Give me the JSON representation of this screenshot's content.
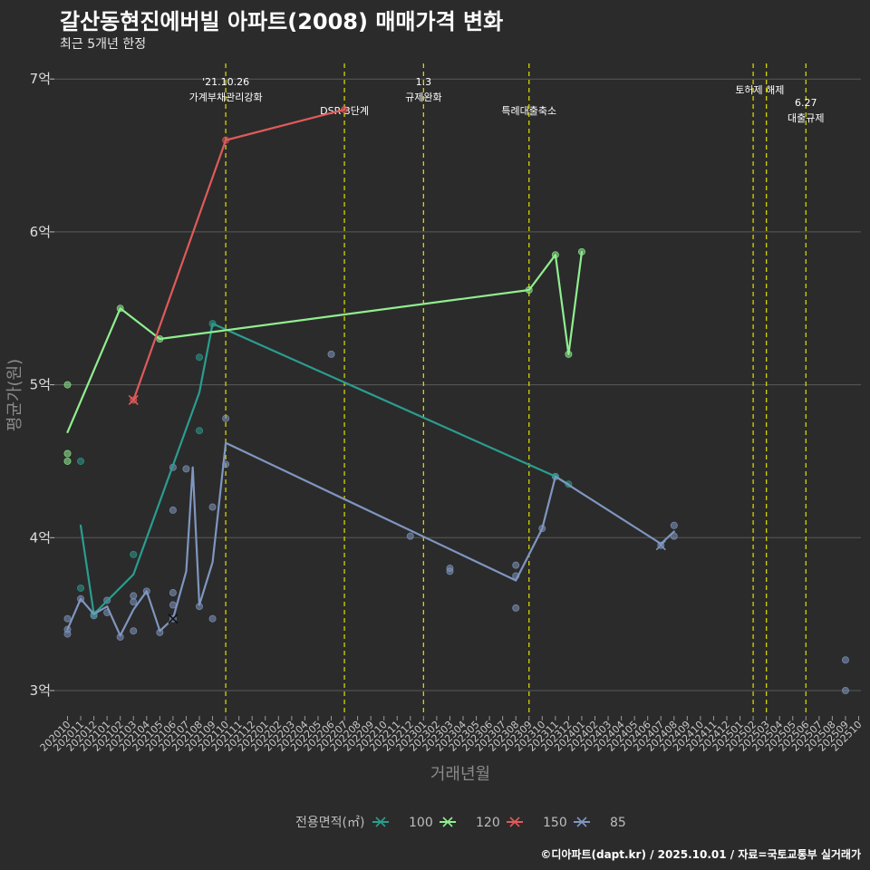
{
  "header": {
    "title": "갈산동현진에버빌 아파트(2008) 매매가격 변화",
    "subtitle": "최근 5개년 한정"
  },
  "caption": "©디아파트(dapt.kr) / 2025.10.01 / 자료=국토교통부 실거래가",
  "colors": {
    "background": "#2b2b2b",
    "grid": "#5a5a5a",
    "event_line": "#d4d400",
    "s100": "#2a9d8f",
    "s120": "#90ee90",
    "s150": "#e05a5a",
    "s85": "#7f96c0"
  },
  "chart_data": {
    "type": "line",
    "title": "갈산동현진에버빌 아파트(2008) 매매가격 변화",
    "subtitle": "최근 5개년 한정",
    "xlabel": "거래년월",
    "ylabel": "평균가(원)",
    "x_ticks": [
      "202010",
      "202011",
      "202012",
      "202101",
      "202102",
      "202103",
      "202104",
      "202105",
      "202106",
      "202107",
      "202108",
      "202109",
      "202110",
      "202111",
      "202112",
      "202201",
      "202202",
      "202203",
      "202204",
      "202205",
      "202206",
      "202207",
      "202208",
      "202209",
      "202210",
      "202211",
      "202212",
      "202301",
      "202302",
      "202303",
      "202304",
      "202305",
      "202306",
      "202307",
      "202308",
      "202309",
      "202310",
      "202311",
      "202312",
      "202401",
      "202402",
      "202403",
      "202404",
      "202405",
      "202406",
      "202407",
      "202408",
      "202409",
      "202410",
      "202411",
      "202412",
      "202501",
      "202502",
      "202503",
      "202504",
      "202505",
      "202506",
      "202507",
      "202508",
      "202509",
      "202510"
    ],
    "y_ticks": [
      {
        "value": 3,
        "label": "3억"
      },
      {
        "value": 4,
        "label": "4억"
      },
      {
        "value": 5,
        "label": "5억"
      },
      {
        "value": 6,
        "label": "6억"
      },
      {
        "value": 7,
        "label": "7억"
      }
    ],
    "ylim": [
      2.85,
      7.1
    ],
    "legend": {
      "title": "전용면적(㎡)",
      "position": "bottom"
    },
    "events": [
      {
        "month": 12,
        "lines": [
          "'21.10.26",
          "가계부채관리강화"
        ],
        "level": 0
      },
      {
        "month": 21,
        "lines": [
          "DSR 3단계"
        ],
        "level": 2
      },
      {
        "month": 27,
        "lines": [
          "1.3",
          "규제완화"
        ],
        "level": 0
      },
      {
        "month": 35,
        "lines": [
          "특례대출축소"
        ],
        "level": 2
      },
      {
        "month": 52,
        "lines": [
          "토허제 해제"
        ],
        "level": 1,
        "offset": 0.5
      },
      {
        "month": 53,
        "lines": [],
        "level": 1
      },
      {
        "month": 56,
        "lines": [
          "6.27",
          "대출규제"
        ],
        "level": 3
      }
    ],
    "series": [
      {
        "name": "100",
        "color": "#2a9d8f",
        "marker": "x",
        "line": [
          [
            1,
            4.08
          ],
          [
            2,
            3.5
          ],
          [
            5,
            3.76
          ],
          [
            10,
            4.95
          ],
          [
            11,
            5.4
          ],
          [
            37,
            4.4
          ],
          [
            38,
            4.35
          ]
        ],
        "points": [
          [
            1,
            4.5
          ],
          [
            1,
            3.67
          ],
          [
            2,
            3.5
          ],
          [
            5,
            3.89
          ],
          [
            10,
            5.18
          ],
          [
            10,
            4.7
          ],
          [
            11,
            5.4
          ],
          [
            37,
            4.4
          ],
          [
            38,
            4.35
          ]
        ]
      },
      {
        "name": "120",
        "color": "#90ee90",
        "marker": "x",
        "line": [
          [
            0,
            4.69
          ],
          [
            4,
            5.5
          ],
          [
            7,
            5.3
          ],
          [
            35,
            5.62
          ],
          [
            37,
            5.85
          ],
          [
            38,
            5.2
          ],
          [
            39,
            5.87
          ]
        ],
        "points": [
          [
            0,
            5.0
          ],
          [
            0,
            4.55
          ],
          [
            0,
            4.5
          ],
          [
            4,
            5.5
          ],
          [
            7,
            5.3
          ],
          [
            35,
            5.62
          ],
          [
            37,
            5.85
          ],
          [
            38,
            5.2
          ],
          [
            39,
            5.87
          ]
        ]
      },
      {
        "name": "150",
        "color": "#e05a5a",
        "marker": "x",
        "line": [
          [
            5,
            4.9
          ],
          [
            12,
            6.6
          ],
          [
            21,
            6.8
          ]
        ],
        "points": [
          [
            5,
            4.9
          ],
          [
            12,
            6.6
          ],
          [
            21,
            6.8
          ]
        ]
      },
      {
        "name": "85",
        "color": "#7f96c0",
        "marker": "x",
        "line": [
          [
            0,
            3.4
          ],
          [
            1,
            3.6
          ],
          [
            2,
            3.5
          ],
          [
            3,
            3.55
          ],
          [
            4,
            3.36
          ],
          [
            5,
            3.53
          ],
          [
            6,
            3.65
          ],
          [
            7,
            3.39
          ],
          [
            8,
            3.47
          ],
          [
            9,
            3.78
          ],
          [
            9.5,
            4.46
          ],
          [
            10,
            3.56
          ],
          [
            11,
            3.84
          ],
          [
            12,
            4.62
          ],
          [
            34,
            3.72
          ],
          [
            36,
            4.06
          ],
          [
            37,
            4.4
          ],
          [
            45,
            3.96
          ],
          [
            46,
            4.04
          ]
        ],
        "points": [
          [
            0,
            3.47
          ],
          [
            0,
            3.4
          ],
          [
            0,
            3.37
          ],
          [
            1,
            3.6
          ],
          [
            2,
            3.49
          ],
          [
            3,
            3.59
          ],
          [
            3,
            3.51
          ],
          [
            4,
            3.35
          ],
          [
            5,
            3.62
          ],
          [
            5,
            3.58
          ],
          [
            5,
            3.39
          ],
          [
            6,
            3.65
          ],
          [
            7,
            3.38
          ],
          [
            8,
            4.46
          ],
          [
            8,
            4.18
          ],
          [
            8,
            3.64
          ],
          [
            8,
            3.56
          ],
          [
            8,
            3.47
          ],
          [
            9,
            4.45
          ],
          [
            10,
            3.55
          ],
          [
            11,
            4.2
          ],
          [
            11,
            3.47
          ],
          [
            12,
            4.78
          ],
          [
            12,
            4.48
          ],
          [
            20,
            5.2
          ],
          [
            26,
            4.01
          ],
          [
            29,
            3.8
          ],
          [
            29,
            3.78
          ],
          [
            34,
            3.82
          ],
          [
            34,
            3.75
          ],
          [
            34,
            3.54
          ],
          [
            36,
            4.06
          ],
          [
            37,
            4.4
          ],
          [
            45,
            3.95
          ],
          [
            46,
            4.08
          ],
          [
            46,
            4.01
          ],
          [
            59,
            3.2
          ],
          [
            59,
            3.0
          ]
        ]
      }
    ]
  }
}
